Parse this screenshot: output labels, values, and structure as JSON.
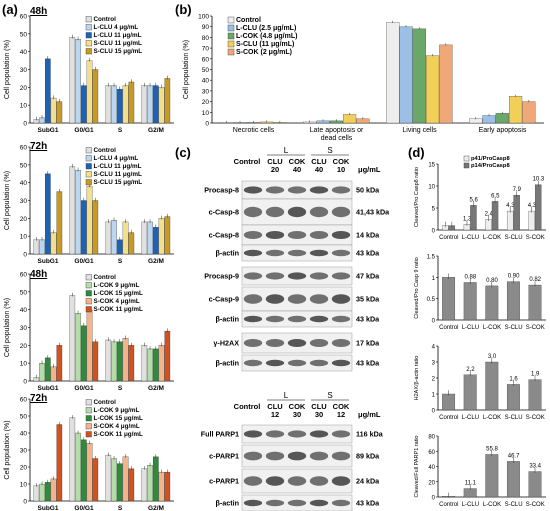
{
  "panel_labels": {
    "a": "(a)",
    "b": "(b)",
    "c": "(c)",
    "d": "(d)"
  },
  "colors": {
    "control": "#e0e0e0",
    "l_clu_4": "#bcd6ee",
    "l_clu_11": "#1f62b4",
    "s_clu_11": "#f4e08c",
    "s_clu_15": "#c79a21",
    "l_cok_9": "#b6dcaa",
    "l_cok_15": "#2f8a3b",
    "s_cok_4": "#f5b38a",
    "s_cok_11": "#d2521f",
    "b_control": "#eeeeee",
    "b_lclu": "#9cbfe6",
    "b_lcok": "#6aa86a",
    "b_sclu": "#f2cf58",
    "b_scok": "#f0a878",
    "d_bar": "#8a8a8a",
    "d_p14": "#777777"
  },
  "chart_data": [
    {
      "id": "a1",
      "type": "bar",
      "time_label": "48h",
      "categories": [
        "SubG1",
        "G0/G1",
        "S",
        "G2/M"
      ],
      "ylabel": "Cell population (%)",
      "ylim": [
        0,
        60
      ],
      "yticks": [
        0,
        10,
        20,
        30,
        40,
        50,
        60
      ],
      "series": [
        {
          "name": "Control",
          "color": "control",
          "values": [
            2,
            48,
            21,
            21
          ]
        },
        {
          "name": "L-CLU 4 μg/mL",
          "color": "l_clu_4",
          "values": [
            3,
            47,
            21,
            21
          ]
        },
        {
          "name": "L-CLU 11 μg/mL",
          "color": "l_clu_11",
          "values": [
            36,
            21,
            19,
            21
          ]
        },
        {
          "name": "S-CLU 11 μg/mL",
          "color": "s_clu_11",
          "values": [
            14,
            35,
            21,
            20
          ]
        },
        {
          "name": "S-CLU 15 μg/mL",
          "color": "s_clu_15",
          "values": [
            12,
            30,
            23,
            25
          ]
        }
      ]
    },
    {
      "id": "a2",
      "type": "bar",
      "time_label": "72h",
      "categories": [
        "SubG1",
        "G0/G1",
        "S",
        "G2/M"
      ],
      "ylabel": "Cell population (%)",
      "ylim": [
        0,
        60
      ],
      "yticks": [
        0,
        10,
        20,
        30,
        40,
        50,
        60
      ],
      "series": [
        {
          "name": "Control",
          "color": "control",
          "values": [
            8,
            49,
            18,
            18
          ]
        },
        {
          "name": "L-CLU 4 μg/mL",
          "color": "l_clu_4",
          "values": [
            8,
            47,
            19,
            18
          ]
        },
        {
          "name": "L-CLU 11 μg/mL",
          "color": "l_clu_11",
          "values": [
            45,
            30,
            8,
            15
          ]
        },
        {
          "name": "S-CLU 11 μg/mL",
          "color": "s_clu_11",
          "values": [
            12,
            38,
            18,
            20
          ]
        },
        {
          "name": "S-CLU 15 μg/mL",
          "color": "s_clu_15",
          "values": [
            35,
            30,
            12,
            21
          ]
        }
      ]
    },
    {
      "id": "a3",
      "type": "bar",
      "time_label": "48h",
      "categories": [
        "SubG1",
        "G0/G1",
        "S",
        "G2/M"
      ],
      "ylabel": "Cell population (%)",
      "ylim": [
        0,
        60
      ],
      "yticks": [
        0,
        10,
        20,
        30,
        40,
        50,
        60
      ],
      "series": [
        {
          "name": "Control",
          "color": "control",
          "values": [
            2,
            48,
            23,
            20
          ]
        },
        {
          "name": "L-COK 9 μg/mL",
          "color": "l_cok_9",
          "values": [
            10,
            38,
            22,
            18
          ]
        },
        {
          "name": "L-COK 15 μg/mL",
          "color": "l_cok_15",
          "values": [
            13,
            31,
            22,
            18
          ]
        },
        {
          "name": "S-COK 4 μg/mL",
          "color": "s_cok_4",
          "values": [
            8,
            40,
            24,
            20
          ]
        },
        {
          "name": "S-COK 11 μg/mL",
          "color": "s_cok_11",
          "values": [
            20,
            22,
            20,
            28
          ]
        }
      ]
    },
    {
      "id": "a4",
      "type": "bar",
      "time_label": "72h",
      "categories": [
        "SubG1",
        "G0/G1",
        "S",
        "G2/M"
      ],
      "ylabel": "Cell population (%)",
      "ylim": [
        0,
        60
      ],
      "yticks": [
        0,
        10,
        20,
        30,
        40,
        50,
        60
      ],
      "series": [
        {
          "name": "Control",
          "color": "control",
          "values": [
            9,
            49,
            27,
            19
          ]
        },
        {
          "name": "L-COK 9 μg/mL",
          "color": "l_cok_9",
          "values": [
            10,
            40,
            25,
            21
          ]
        },
        {
          "name": "L-COK 15 μg/mL",
          "color": "l_cok_15",
          "values": [
            11,
            36,
            22,
            26
          ]
        },
        {
          "name": "S-COK 4 μg/mL",
          "color": "s_cok_4",
          "values": [
            13,
            34,
            26,
            17
          ]
        },
        {
          "name": "S-COK 11 μg/mL",
          "color": "s_cok_11",
          "values": [
            45,
            25,
            19,
            17
          ]
        }
      ]
    },
    {
      "id": "b",
      "type": "bar",
      "categories": [
        "Necrotic cells",
        "Late apoptosis or\ndead cells",
        "Living cells",
        "Early apoptosis"
      ],
      "ylabel": "Cell population (%)",
      "ylim": [
        0,
        100
      ],
      "yticks": [
        0,
        10,
        20,
        30,
        40,
        50,
        60,
        70,
        80,
        90,
        100
      ],
      "series": [
        {
          "name": "Control",
          "color": "b_control",
          "values": [
            0.5,
            1,
            94,
            4
          ]
        },
        {
          "name": "L-CLU (2.5 μg/mL)",
          "color": "b_lclu",
          "values": [
            0.5,
            2,
            90,
            7
          ]
        },
        {
          "name": "L-COK (4.8 μg/mL)",
          "color": "b_lcok",
          "values": [
            0.5,
            2,
            88,
            9
          ]
        },
        {
          "name": "S-CLU (11 μg/mL)",
          "color": "b_sclu",
          "values": [
            1,
            8,
            63,
            25
          ]
        },
        {
          "name": "S-COK (2 μg/mL)",
          "color": "b_scok",
          "values": [
            0.5,
            4,
            73,
            20
          ]
        }
      ]
    },
    {
      "id": "d1",
      "type": "bar",
      "categories": [
        "Control",
        "L-CLU",
        "L-COK",
        "S-CLU",
        "S-COK"
      ],
      "ylabel": "Cleaved/Pro Casp8 ratio",
      "ylim": [
        0,
        15
      ],
      "yticks": [
        0,
        5,
        10,
        15
      ],
      "series": [
        {
          "name": "p41/ProCasp8",
          "color": "b_control",
          "values": [
            1,
            1.3,
            2.4,
            4.3,
            4.3
          ],
          "labels": [
            "",
            "1.3",
            "2.4",
            "4.3",
            "4.3"
          ]
        },
        {
          "name": "p14/ProCasp8",
          "color": "d_p14",
          "values": [
            1,
            5.6,
            6.5,
            7.9,
            10.3
          ],
          "labels": [
            "",
            "5.6",
            "6.5",
            "7.9",
            "10.3"
          ]
        }
      ]
    },
    {
      "id": "d2",
      "type": "bar",
      "categories": [
        "Control",
        "L-CLU",
        "L-COK",
        "S-CLU",
        "S-COK"
      ],
      "ylabel": "Cleaved/Pro Casp 9 ratio",
      "ylim": [
        0,
        1.5
      ],
      "yticks": [
        0,
        0.5,
        1,
        1.5
      ],
      "series": [
        {
          "name": "ratio",
          "color": "d_bar",
          "values": [
            1,
            0.88,
            0.8,
            0.9,
            0.82
          ],
          "labels": [
            "",
            "0.88",
            "0.80",
            "0.90",
            "0.82"
          ]
        }
      ]
    },
    {
      "id": "d3",
      "type": "bar",
      "categories": [
        "Control",
        "L-CLU",
        "L-COK",
        "S-CLU",
        "S-COK"
      ],
      "ylabel": "H2AX/β-actin ratio",
      "ylim": [
        0,
        4
      ],
      "yticks": [
        0,
        1,
        2,
        3,
        4
      ],
      "series": [
        {
          "name": "ratio",
          "color": "d_bar",
          "values": [
            1,
            2.2,
            3.0,
            1.6,
            1.9
          ],
          "labels": [
            "",
            "2.2",
            "3.0",
            "1.6",
            "1.9"
          ]
        }
      ]
    },
    {
      "id": "d4",
      "type": "bar",
      "categories": [
        "Control",
        "L-CLU",
        "L-COK",
        "S-CLU",
        "S-COK"
      ],
      "ylabel": "Cleaved/Full PARP1 ratio",
      "ylim": [
        0,
        80
      ],
      "yticks": [
        0,
        20,
        40,
        60,
        80
      ],
      "series": [
        {
          "name": "ratio",
          "color": "d_bar",
          "values": [
            1,
            11.1,
            55.8,
            46.7,
            33.4
          ],
          "labels": [
            "",
            "11.1",
            "55.8",
            "46.7",
            "33.4"
          ]
        }
      ]
    }
  ],
  "blots_top": {
    "groups": [
      "L",
      "S"
    ],
    "lanes": [
      "Control",
      "CLU",
      "COK",
      "CLU",
      "COK"
    ],
    "concs": [
      "20",
      "40",
      "40",
      "10"
    ],
    "unit": "μg/mL",
    "rows": [
      {
        "label": "Procasp-8",
        "kda": "50 kDa"
      },
      {
        "label": "c-Casp-8",
        "kda": "41,43 kDa"
      },
      {
        "label": "c-Casp-8",
        "kda": "14 kDa"
      },
      {
        "label": "β-actin",
        "kda": "43 kDa"
      },
      {
        "label": "Procasp-9",
        "kda": "47 kDa"
      },
      {
        "label": "c-Casp-9",
        "kda": "35 kDa"
      },
      {
        "label": "β-actin",
        "kda": "43 kDa"
      },
      {
        "label": "γ-H2AX",
        "kda": "17 kDa"
      },
      {
        "label": "β-actin",
        "kda": "43 kDa"
      }
    ]
  },
  "blots_bottom": {
    "groups": [
      "L",
      "S"
    ],
    "lanes": [
      "Control",
      "CLU",
      "COK",
      "CLU",
      "COK"
    ],
    "concs": [
      "12",
      "30",
      "30",
      "12"
    ],
    "unit": "μg/mL",
    "rows": [
      {
        "label": "Full PARP1",
        "kda": "116 kDa"
      },
      {
        "label": "c-PARP1",
        "kda": "89 kDa"
      },
      {
        "label": "c-PARP1",
        "kda": "24 kDa"
      },
      {
        "label": "β-actin",
        "kda": "43 kDa"
      }
    ]
  }
}
